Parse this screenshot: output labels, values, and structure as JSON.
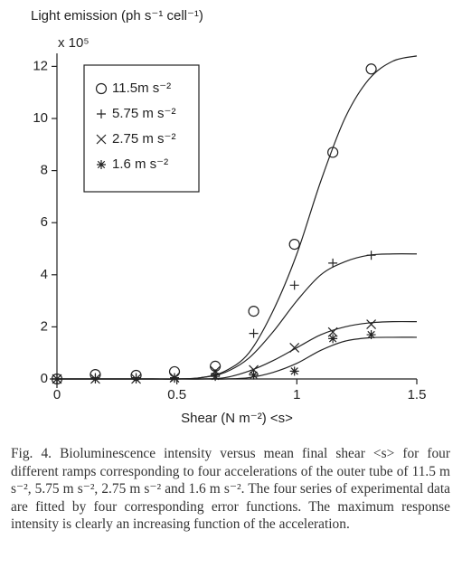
{
  "chart_data": {
    "type": "scatter",
    "y_label": "Light emission (ph s⁻¹ cell⁻¹)",
    "y_multiplier": "x 10⁵",
    "x_label": "Shear (N m⁻²) <s>",
    "xlim": [
      0,
      1.5
    ],
    "ylim": [
      0,
      12.5
    ],
    "xticks": [
      0,
      0.5,
      1,
      1.5
    ],
    "yticks": [
      0,
      2,
      4,
      6,
      8,
      10,
      12
    ],
    "legend": "upper left",
    "x": [
      0,
      0.16,
      0.33,
      0.49,
      0.66,
      0.82,
      0.99,
      1.15,
      1.31
    ],
    "fit_x": [
      0,
      0.1,
      0.2,
      0.3,
      0.4,
      0.5,
      0.6,
      0.7,
      0.8,
      0.9,
      1.0,
      1.1,
      1.2,
      1.3,
      1.4,
      1.5
    ],
    "series": [
      {
        "name": "11.5m s⁻²",
        "marker": "circle",
        "color": "#222222",
        "values": [
          0,
          0.17,
          0.14,
          0.28,
          0.49,
          2.6,
          5.17,
          8.7,
          11.9
        ],
        "fit": [
          0,
          0,
          0,
          0,
          0,
          0,
          0.05,
          0.3,
          1.0,
          2.6,
          4.8,
          7.6,
          10.0,
          11.5,
          12.2,
          12.4
        ]
      },
      {
        "name": "5.75 m s⁻²",
        "marker": "plus",
        "color": "#222222",
        "values": [
          0,
          0.05,
          0.05,
          0.05,
          0.2,
          1.75,
          3.6,
          4.45,
          4.75
        ],
        "fit": [
          0,
          0,
          0,
          0,
          0,
          0,
          0.05,
          0.25,
          0.8,
          1.8,
          3.0,
          4.0,
          4.5,
          4.75,
          4.8,
          4.8
        ]
      },
      {
        "name": "2.75 m s⁻²",
        "marker": "x",
        "color": "#222222",
        "values": [
          0,
          0,
          0,
          0.05,
          0.3,
          0.35,
          1.2,
          1.8,
          2.1
        ],
        "fit": [
          0,
          0,
          0,
          0,
          0,
          0,
          0,
          0.05,
          0.3,
          0.7,
          1.2,
          1.7,
          2.0,
          2.15,
          2.2,
          2.2
        ]
      },
      {
        "name": "1.6 m s⁻²",
        "marker": "asterisk",
        "color": "#222222",
        "values": [
          0,
          0,
          0,
          0.03,
          0.1,
          0.15,
          0.3,
          1.55,
          1.7
        ],
        "fit": [
          0,
          0,
          0,
          0,
          0,
          0,
          0,
          0,
          0.05,
          0.25,
          0.6,
          1.1,
          1.45,
          1.58,
          1.6,
          1.6
        ]
      }
    ],
    "caption": "Fig. 4. Bioluminescence intensity versus mean final shear <s> for four different ramps corresponding to four accelerations of the outer tube of 11.5 m s⁻², 5.75 m s⁻², 2.75 m s⁻² and 1.6 m s⁻². The four series of experimental data are fitted by four corresponding error functions. The maximum response intensity is clearly an increasing function of the acceleration."
  }
}
